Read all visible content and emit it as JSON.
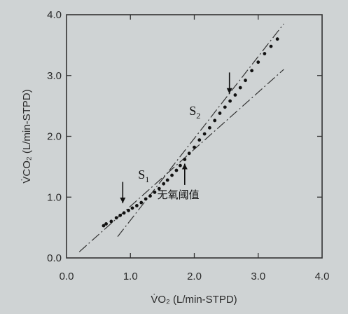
{
  "chart_data": {
    "type": "scatter",
    "xlabel": "V̇O₂ (L/min-STPD)",
    "ylabel": "V̇CO₂ (L/min-STPD)",
    "xlim": [
      0.0,
      4.0
    ],
    "ylim": [
      0.0,
      4.0
    ],
    "x_ticks": [
      "0.0",
      "1.0",
      "2.0",
      "3.0",
      "4.0"
    ],
    "y_ticks": [
      "0.0",
      "1.0",
      "2.0",
      "3.0",
      "4.0"
    ],
    "grid": false,
    "series": [
      {
        "points": [
          [
            0.58,
            0.53
          ],
          [
            0.62,
            0.56
          ],
          [
            0.7,
            0.6
          ],
          [
            0.78,
            0.66
          ],
          [
            0.84,
            0.7
          ],
          [
            0.9,
            0.74
          ],
          [
            0.97,
            0.78
          ],
          [
            1.03,
            0.82
          ],
          [
            1.1,
            0.86
          ],
          [
            1.17,
            0.91
          ],
          [
            1.24,
            0.97
          ],
          [
            1.31,
            1.02
          ],
          [
            1.38,
            1.08
          ],
          [
            1.45,
            1.14
          ],
          [
            1.52,
            1.22
          ],
          [
            1.58,
            1.28
          ],
          [
            1.65,
            1.36
          ],
          [
            1.72,
            1.44
          ],
          [
            1.78,
            1.52
          ],
          [
            1.85,
            1.62
          ],
          [
            1.92,
            1.72
          ],
          [
            2.0,
            1.82
          ],
          [
            2.08,
            1.94
          ],
          [
            2.16,
            2.04
          ],
          [
            2.24,
            2.14
          ],
          [
            2.32,
            2.26
          ],
          [
            2.4,
            2.38
          ],
          [
            2.48,
            2.48
          ],
          [
            2.56,
            2.58
          ],
          [
            2.64,
            2.68
          ],
          [
            2.72,
            2.8
          ],
          [
            2.8,
            2.92
          ],
          [
            2.9,
            3.08
          ],
          [
            3.0,
            3.22
          ],
          [
            3.1,
            3.36
          ],
          [
            3.2,
            3.48
          ],
          [
            3.3,
            3.6
          ]
        ]
      }
    ],
    "reference_lines": [
      {
        "x": [
          0.2,
          3.4
        ],
        "y": [
          0.1,
          3.1
        ]
      },
      {
        "x": [
          0.8,
          3.4
        ],
        "y": [
          0.35,
          3.85
        ]
      }
    ],
    "annotations": [
      {
        "text": "S",
        "sub": "1",
        "x": 1.12,
        "y": 1.3
      },
      {
        "text": "S",
        "sub": "2",
        "x": 1.92,
        "y": 2.35
      },
      {
        "text": "无氧阈值",
        "x": 1.75,
        "y": 0.98
      }
    ],
    "arrows": [
      {
        "direction": "down",
        "x": 0.88,
        "y_from": 1.25,
        "y_to": 0.9
      },
      {
        "direction": "down",
        "x": 2.55,
        "y_from": 3.05,
        "y_to": 2.7
      },
      {
        "direction": "up",
        "x": 1.85,
        "y_from": 1.2,
        "y_to": 1.55
      }
    ]
  }
}
